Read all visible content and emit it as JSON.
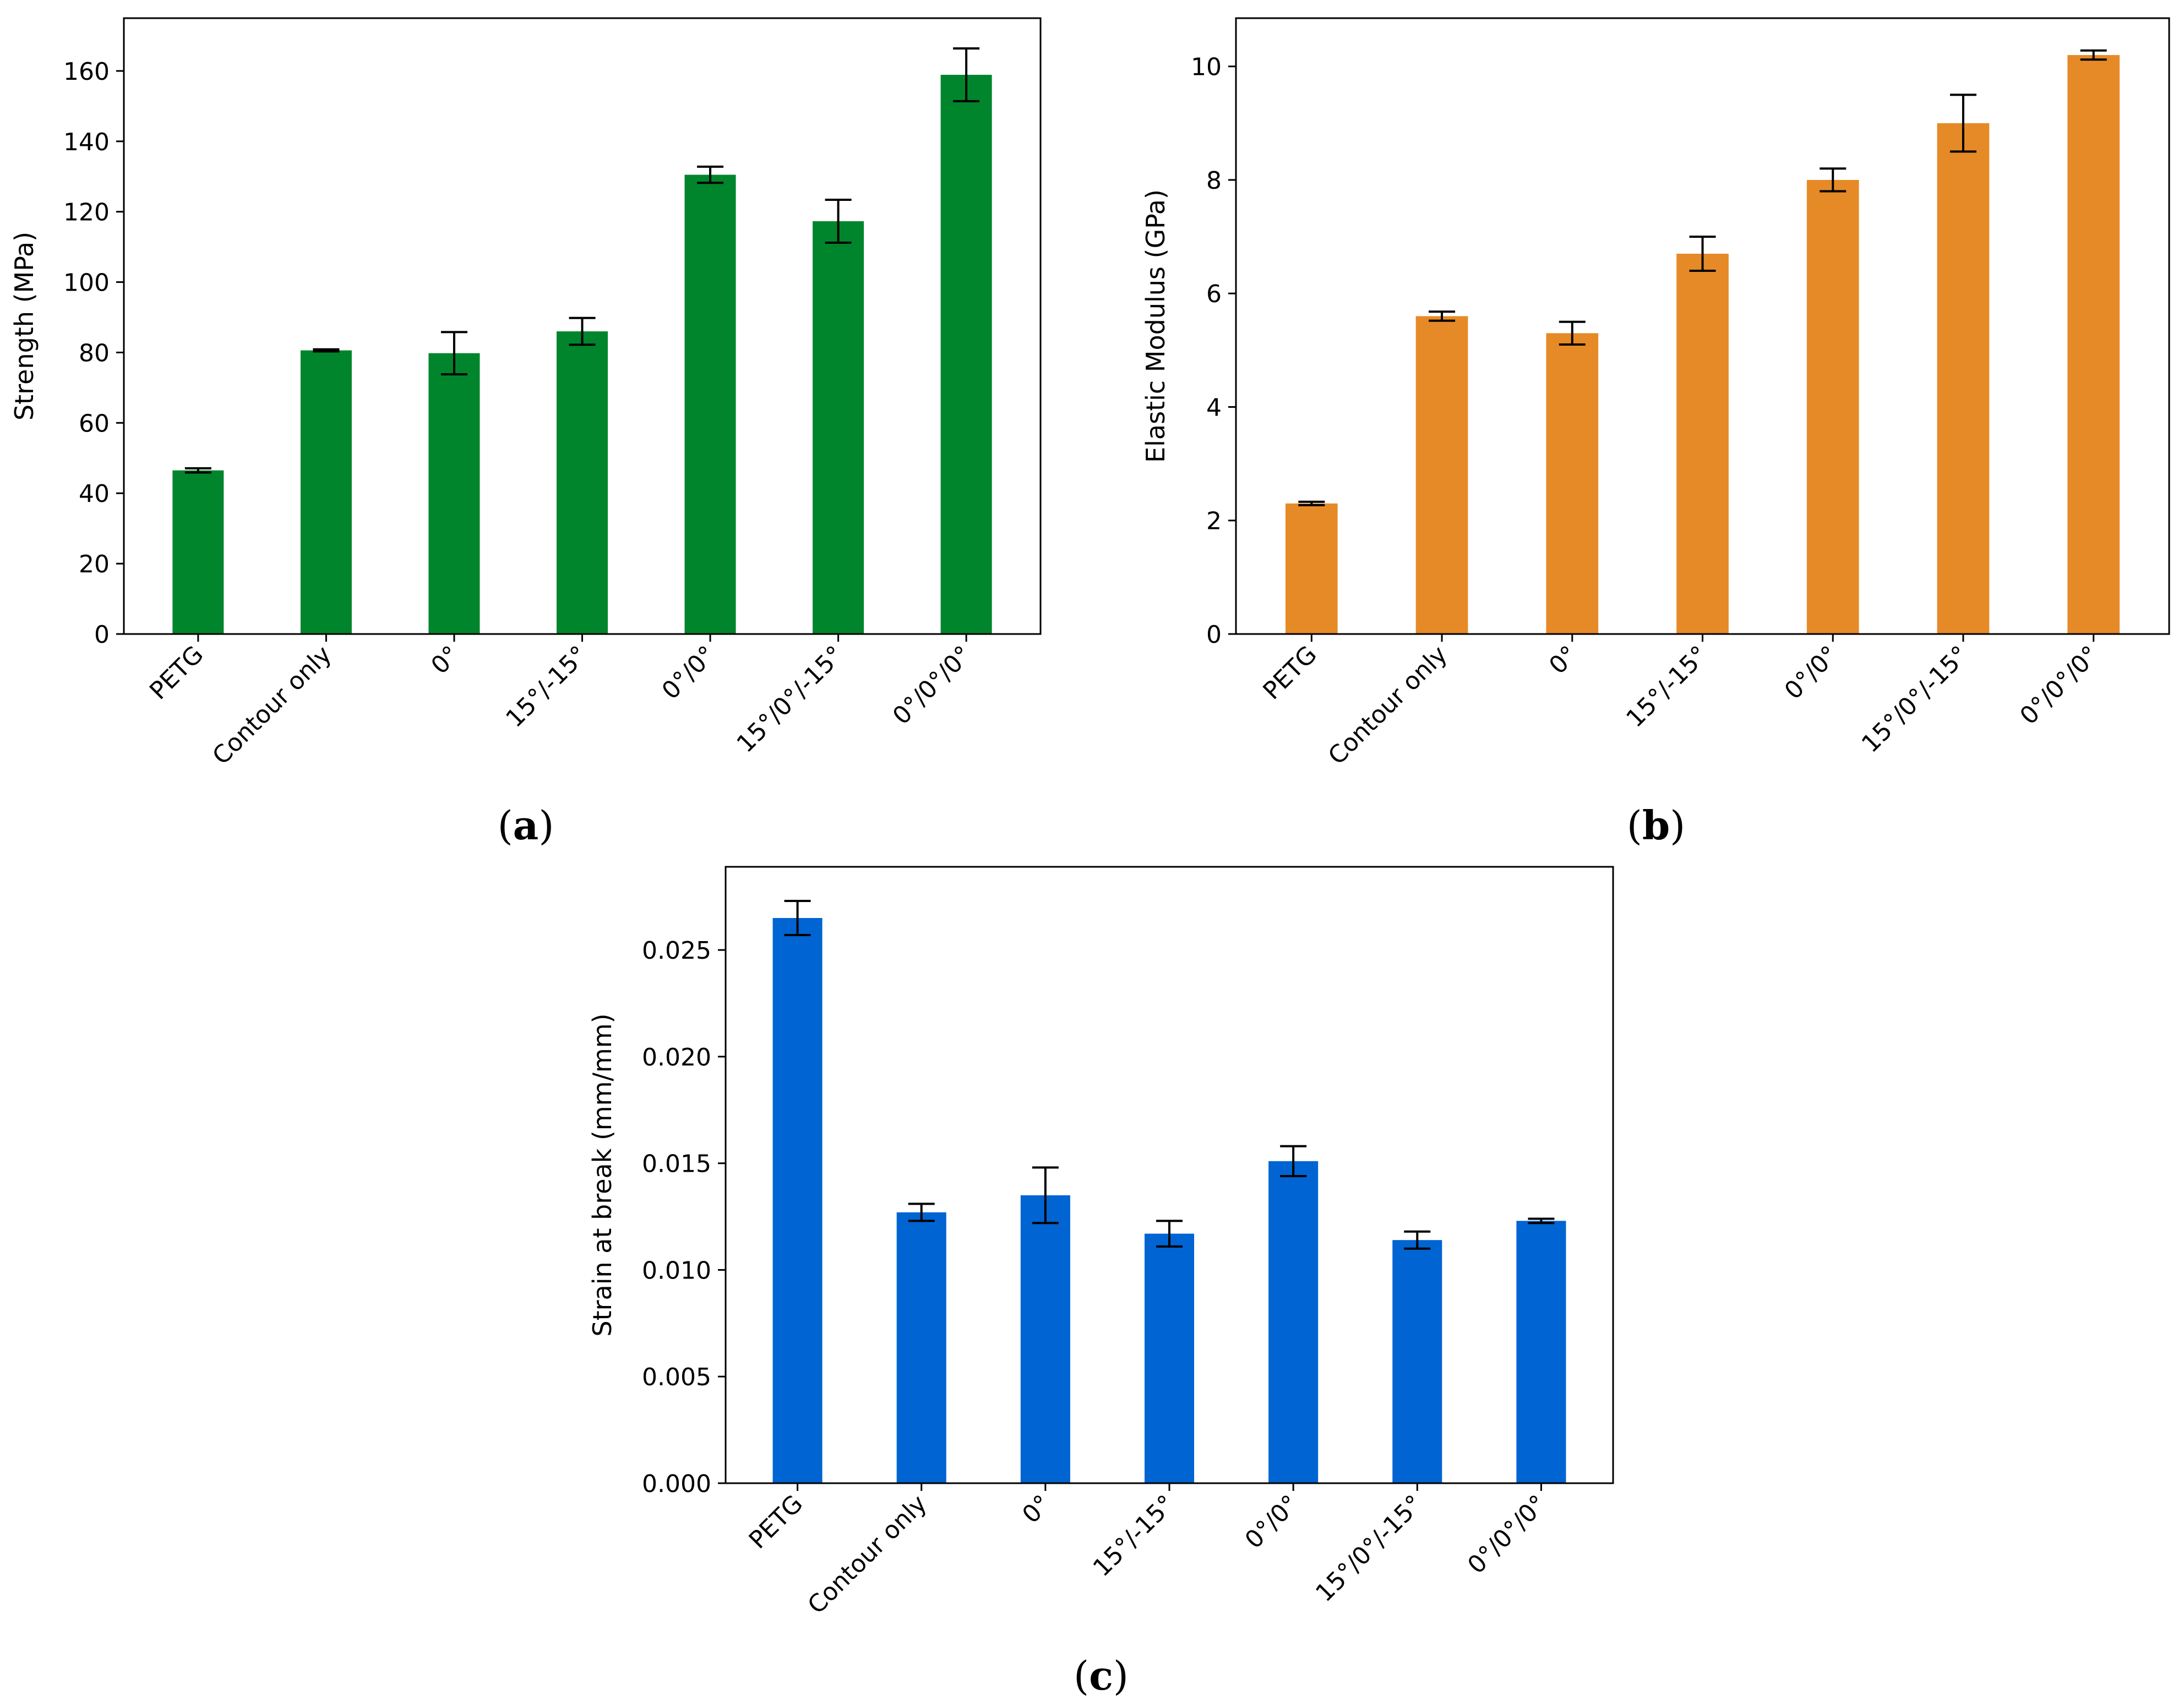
{
  "chart_data": [
    {
      "type": "bar",
      "panel_label": "a",
      "categories": [
        "PETG",
        "Contour only",
        "0°",
        "15°/-15°",
        "0°/0°",
        "15°/0°/-15°",
        "0°/0°/0°"
      ],
      "values": [
        46.5,
        80.6,
        79.8,
        86.0,
        130.5,
        117.3,
        158.9
      ],
      "errors": [
        0.6,
        0.3,
        6.0,
        3.8,
        2.3,
        6.1,
        7.5
      ],
      "xlabel": "",
      "ylabel": "Strength (MPa)",
      "ylim": [
        0,
        175
      ],
      "yticks": [
        0,
        20,
        40,
        60,
        80,
        100,
        120,
        140,
        160
      ],
      "ytick_labels": [
        "0",
        "20",
        "40",
        "60",
        "80",
        "100",
        "120",
        "140",
        "160"
      ],
      "color": "#00852c",
      "grid": false
    },
    {
      "type": "bar",
      "panel_label": "b",
      "categories": [
        "PETG",
        "Contour only",
        "0°",
        "15°/-15°",
        "0°/0°",
        "15°/0°/-15°",
        "0°/0°/0°"
      ],
      "values": [
        2.3,
        5.6,
        5.3,
        6.7,
        8.0,
        9.0,
        10.2
      ],
      "errors": [
        0.03,
        0.08,
        0.2,
        0.3,
        0.2,
        0.5,
        0.08
      ],
      "xlabel": "",
      "ylabel": "Elastic Modulus (GPa)",
      "ylim": [
        0,
        10.85
      ],
      "yticks": [
        0,
        2,
        4,
        6,
        8,
        10
      ],
      "ytick_labels": [
        "0",
        "2",
        "4",
        "6",
        "8",
        "10"
      ],
      "color": "#e68a28",
      "grid": false
    },
    {
      "type": "bar",
      "panel_label": "c",
      "categories": [
        "PETG",
        "Contour only",
        "0°",
        "15°/-15°",
        "0°/0°",
        "15°/0°/-15°",
        "0°/0°/0°"
      ],
      "values": [
        0.0265,
        0.0127,
        0.0135,
        0.0117,
        0.0151,
        0.0114,
        0.0123
      ],
      "errors": [
        0.0008,
        0.0004,
        0.0013,
        0.0006,
        0.0007,
        0.0004,
        0.0001
      ],
      "xlabel": "",
      "ylabel": "Strain at break (mm/mm)",
      "ylim": [
        0,
        0.0289
      ],
      "yticks": [
        0,
        0.005,
        0.01,
        0.015,
        0.02,
        0.025
      ],
      "ytick_labels": [
        "0.000",
        "0.005",
        "0.010",
        "0.015",
        "0.020",
        "0.025"
      ],
      "color": "#0064d2",
      "grid": false
    }
  ],
  "captions": [
    {
      "open": "(",
      "letter": "a",
      "close": ")"
    },
    {
      "open": "(",
      "letter": "b",
      "close": ")"
    },
    {
      "open": "(",
      "letter": "c",
      "close": ")"
    }
  ],
  "colors": {
    "axis": "#000000",
    "background": "#ffffff",
    "error_bar": "#000000"
  }
}
